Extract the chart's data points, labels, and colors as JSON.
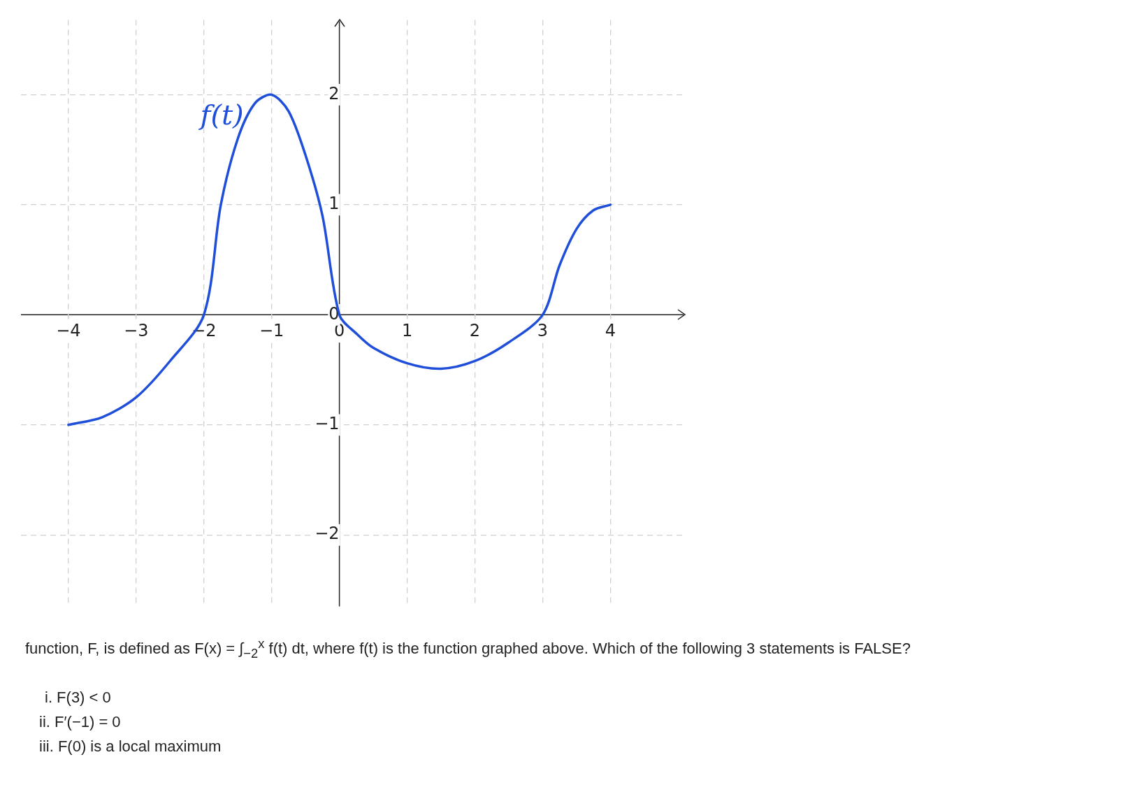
{
  "chart_data": {
    "type": "line",
    "x": [
      -4,
      -3.5,
      -3,
      -2.5,
      -2,
      -1.75,
      -1.5,
      -1.25,
      -1,
      -0.75,
      -0.5,
      -0.25,
      0,
      0.25,
      0.5,
      1,
      1.5,
      2,
      2.5,
      3,
      3.25,
      3.5,
      3.75,
      4
    ],
    "series": [
      {
        "name": "f(t)",
        "color": "#1f4fd8",
        "values": [
          -1,
          -0.93,
          -0.75,
          -0.42,
          0,
          1,
          1.6,
          1.92,
          2,
          1.85,
          1.45,
          0.9,
          0,
          -0.17,
          -0.3,
          -0.44,
          -0.49,
          -0.42,
          -0.25,
          0,
          0.45,
          0.78,
          0.95,
          1
        ]
      }
    ],
    "xlim": [
      -4.7,
      5.1
    ],
    "ylim": [
      -2.65,
      2.68
    ],
    "xticks": [
      -4,
      -3,
      -2,
      -1,
      0,
      1,
      2,
      3,
      4
    ],
    "yticks": [
      -2,
      -1,
      0,
      1,
      2
    ],
    "grid": true,
    "legend": false,
    "marker": "none",
    "line_style": "solid",
    "annotations": [
      "function, F, is defined as F(x) = ∫$_{−2}$$^{x}$ f(t) dt, where f(t) is the function graphed above. Which of the following 3 statements is FALSE?",
      "i. F(3) < 0",
      "ii. F′(−1) = 0",
      "iii. F(0) is a local maximum"
    ]
  }
}
